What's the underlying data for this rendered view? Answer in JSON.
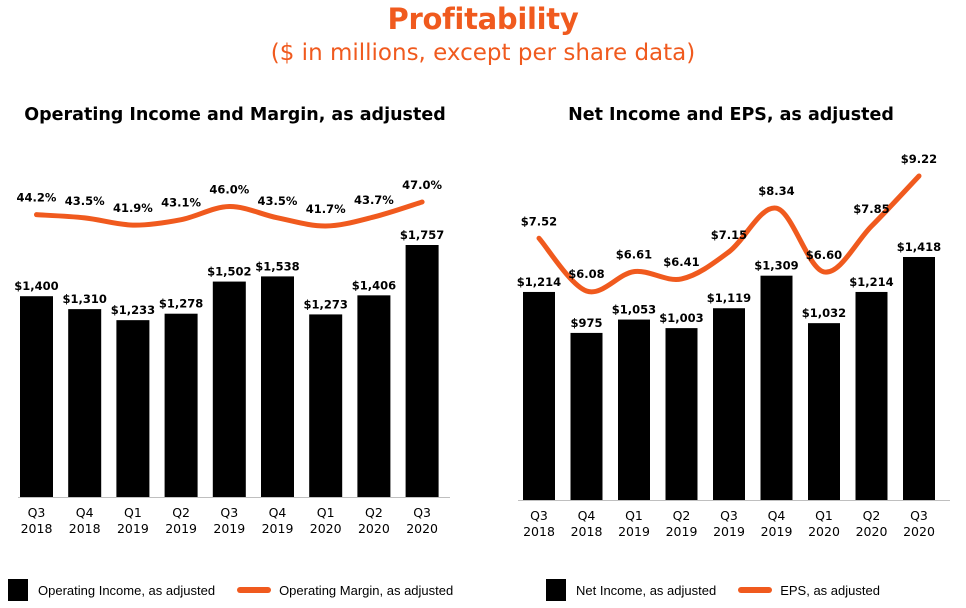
{
  "page": {
    "title": "Profitability",
    "subtitle": "($ in millions, except per share data)"
  },
  "colors": {
    "accent": "#f05a1e",
    "bar": "#000000"
  },
  "charts": {
    "left": {
      "title": "Operating Income and Margin, as adjusted",
      "legend": {
        "bar": "Operating Income, as adjusted",
        "line": "Operating Margin, as adjusted"
      }
    },
    "right": {
      "title": "Net Income and EPS, as adjusted",
      "legend": {
        "bar": "Net Income, as adjusted",
        "line": "EPS, as adjusted"
      }
    }
  },
  "chart_data": [
    {
      "type": "bar",
      "title": "Operating Income and Margin, as adjusted",
      "categories": [
        [
          "Q3",
          "2018"
        ],
        [
          "Q4",
          "2018"
        ],
        [
          "Q1",
          "2019"
        ],
        [
          "Q2",
          "2019"
        ],
        [
          "Q3",
          "2019"
        ],
        [
          "Q4",
          "2019"
        ],
        [
          "Q1",
          "2020"
        ],
        [
          "Q2",
          "2020"
        ],
        [
          "Q3",
          "2020"
        ]
      ],
      "series": [
        {
          "name": "Operating Income, as adjusted",
          "type": "bar",
          "values": [
            1400,
            1310,
            1233,
            1278,
            1502,
            1538,
            1273,
            1406,
            1757
          ],
          "labels": [
            "$1,400",
            "$1,310",
            "$1,233",
            "$1,278",
            "$1,502",
            "$1,538",
            "$1,273",
            "$1,406",
            "$1,757"
          ]
        },
        {
          "name": "Operating Margin, as adjusted",
          "type": "line",
          "values": [
            44.2,
            43.5,
            41.9,
            43.1,
            46.0,
            43.5,
            41.7,
            43.7,
            47.0
          ],
          "labels": [
            "44.2%",
            "43.5%",
            "41.9%",
            "43.1%",
            "46.0%",
            "43.5%",
            "41.7%",
            "43.7%",
            "47.0%"
          ]
        }
      ],
      "ylim": [
        0,
        1757
      ],
      "legend": "bottom"
    },
    {
      "type": "bar",
      "title": "Net Income and EPS, as adjusted",
      "categories": [
        [
          "Q3",
          "2018"
        ],
        [
          "Q4",
          "2018"
        ],
        [
          "Q1",
          "2019"
        ],
        [
          "Q2",
          "2019"
        ],
        [
          "Q3",
          "2019"
        ],
        [
          "Q4",
          "2019"
        ],
        [
          "Q1",
          "2020"
        ],
        [
          "Q2",
          "2020"
        ],
        [
          "Q3",
          "2020"
        ]
      ],
      "series": [
        {
          "name": "Net Income, as adjusted",
          "type": "bar",
          "values": [
            1214,
            975,
            1053,
            1003,
            1119,
            1309,
            1032,
            1214,
            1418
          ],
          "labels": [
            "$1,214",
            "$975",
            "$1,053",
            "$1,003",
            "$1,119",
            "$1,309",
            "$1,032",
            "$1,214",
            "$1,418"
          ]
        },
        {
          "name": "EPS, as adjusted",
          "type": "line",
          "values": [
            7.52,
            6.08,
            6.61,
            6.41,
            7.15,
            8.34,
            6.6,
            7.85,
            9.22
          ],
          "labels": [
            "$7.52",
            "$6.08",
            "$6.61",
            "$6.41",
            "$7.15",
            "$8.34",
            "$6.60",
            "$7.85",
            "$9.22"
          ]
        }
      ],
      "ylim": [
        0,
        1418
      ],
      "legend": "bottom"
    }
  ]
}
